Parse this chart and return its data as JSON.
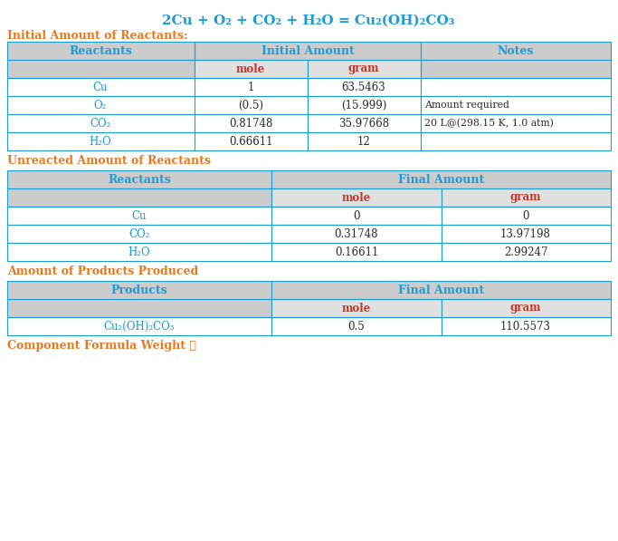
{
  "title": "2Cu + O₂ + CO₂ + H₂O = Cu₂(OH)₂CO₃",
  "title_color": "#1B9CD8",
  "section1_title": "Initial Amount of Reactants:",
  "section2_title": "Unreacted Amount of Reactants",
  "section3_title": "Amount of Products Produced",
  "section4_title": "Component Formula Weight 🖩",
  "section_title_color": "#E87820",
  "header_text_color": "#1B9CD8",
  "subheader_color": "#C0392B",
  "cell_text_color": "#1B9CD8",
  "note_text_color": "#2a2a2a",
  "header_bg": "#CCCCCC",
  "subheader_bg": "#E0E0E0",
  "border_color": "#1B9CD8",
  "bg_color": "#FFFFFF",
  "table1_rows": [
    [
      "Cu",
      "1",
      "63.5463",
      ""
    ],
    [
      "O₂",
      "(0.5)",
      "(15.999)",
      "Amount required"
    ],
    [
      "CO₂",
      "0.81748",
      "35.97668",
      "20 L@(298.15 K, 1.0 atm)"
    ],
    [
      "H₂O",
      "0.66611",
      "12",
      ""
    ]
  ],
  "table2_rows": [
    [
      "Cu",
      "0",
      "0"
    ],
    [
      "CO₂",
      "0.31748",
      "13.97198"
    ],
    [
      "H₂O",
      "0.16611",
      "2.99247"
    ]
  ],
  "table3_rows": [
    [
      "Cu₂(OH)₂CO₃",
      "0.5",
      "110.5573"
    ]
  ]
}
